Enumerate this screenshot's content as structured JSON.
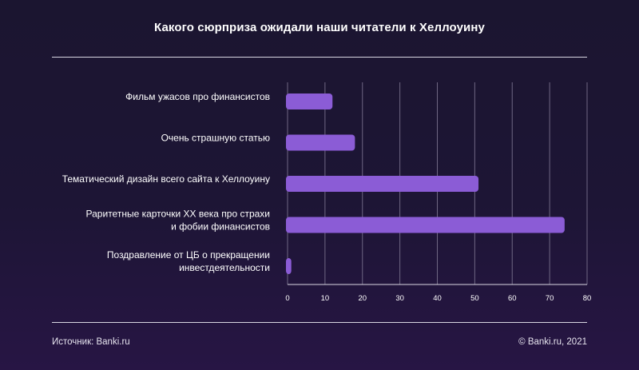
{
  "title": "Какого сюрприза ожидали наши читатели к Хеллоуину",
  "footer": {
    "source": "Источник: Banki.ru",
    "copyright": "© Banki.ru, 2021"
  },
  "colors": {
    "bar": "#8b5cd6",
    "grid": "#6f6783",
    "axis": "#d9d6e2"
  },
  "chart_data": {
    "type": "bar",
    "orientation": "horizontal",
    "title": "Какого сюрприза ожидали наши читатели к Хеллоуину",
    "categories": [
      [
        "Фильм ужасов про финансистов"
      ],
      [
        "Очень страшную статью"
      ],
      [
        "Тематический дизайн всего сайта к Хеллоуину"
      ],
      [
        "Раритетные карточки XX века про страхи",
        "и фобии финансистов"
      ],
      [
        "Поздравление от ЦБ о прекращении",
        "инвестдеятельности"
      ]
    ],
    "values": [
      12,
      18,
      51,
      74,
      1
    ],
    "xlim": [
      0,
      80
    ],
    "xticks": [
      "0",
      "10",
      "20",
      "30",
      "40",
      "50",
      "60",
      "70",
      "80"
    ],
    "grid": true,
    "legend": "none"
  }
}
